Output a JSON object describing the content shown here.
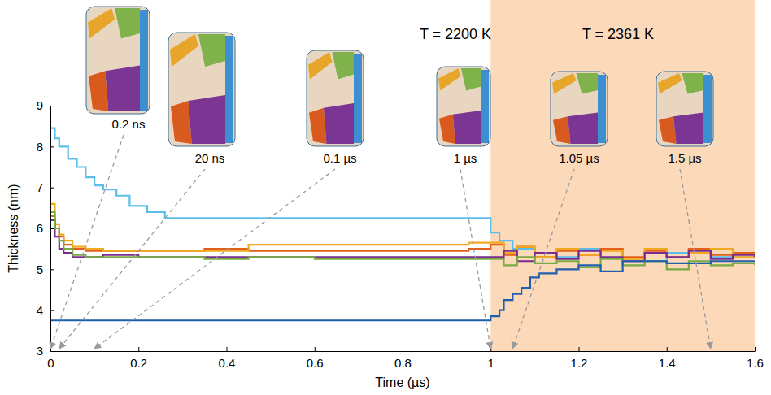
{
  "chart_data": {
    "type": "line",
    "line_style": "step",
    "x_label": "Time (µs)",
    "y_label": "Thickness (nm)",
    "xlim": [
      0,
      1.6
    ],
    "ylim": [
      3,
      9
    ],
    "xticks": [
      0,
      0.2,
      0.4,
      0.6,
      0.8,
      1,
      1.2,
      1.4,
      1.6
    ],
    "yticks": [
      3,
      4,
      5,
      6,
      7,
      8,
      9
    ],
    "grid": false,
    "regions": [
      {
        "x": [
          0,
          1
        ],
        "label": "T = 2200 K"
      },
      {
        "x": [
          1,
          1.6
        ],
        "label": "T = 2361 K",
        "color": "#fcd9b8"
      }
    ],
    "annotations": [
      {
        "text": "0.2 ns",
        "x": 0.0002
      },
      {
        "text": "20 ns",
        "x": 0.02
      },
      {
        "text": "0.1 µs",
        "x": 0.1
      },
      {
        "text": "1 µs",
        "x": 1
      },
      {
        "text": "1.05 µs",
        "x": 1.05
      },
      {
        "text": "1.5 µs",
        "x": 1.5
      }
    ],
    "series": [
      {
        "color": "#5bbde9",
        "x": [
          0,
          0.01,
          0.02,
          0.04,
          0.06,
          0.08,
          0.1,
          0.12,
          0.15,
          0.18,
          0.22,
          0.26,
          0.3,
          0.5,
          0.7,
          0.95,
          1.0,
          1.02,
          1.05,
          1.1,
          1.15,
          1.2,
          1.3,
          1.4,
          1.5,
          1.6
        ],
        "values": [
          8.45,
          8.2,
          8.0,
          7.7,
          7.5,
          7.25,
          7.05,
          6.95,
          6.8,
          6.55,
          6.4,
          6.25,
          6.25,
          6.25,
          6.25,
          6.25,
          5.9,
          5.7,
          5.5,
          5.4,
          5.3,
          5.5,
          5.2,
          5.4,
          5.3,
          5.3
        ]
      },
      {
        "color": "#e2601c",
        "x": [
          0,
          0.01,
          0.02,
          0.03,
          0.05,
          0.08,
          0.12,
          0.2,
          0.35,
          0.45,
          0.6,
          0.8,
          0.95,
          1.0,
          1.03,
          1.06,
          1.1,
          1.15,
          1.2,
          1.25,
          1.3,
          1.35,
          1.4,
          1.45,
          1.5,
          1.55,
          1.6
        ],
        "values": [
          6.3,
          6.0,
          5.8,
          5.6,
          5.5,
          5.45,
          5.45,
          5.45,
          5.5,
          5.45,
          5.45,
          5.45,
          5.5,
          5.6,
          5.35,
          5.55,
          5.3,
          5.45,
          5.35,
          5.5,
          5.3,
          5.45,
          5.3,
          5.5,
          5.35,
          5.4,
          5.35
        ]
      },
      {
        "color": "#f0aa22",
        "x": [
          0,
          0.01,
          0.02,
          0.03,
          0.05,
          0.08,
          0.12,
          0.2,
          0.35,
          0.45,
          0.6,
          0.8,
          0.95,
          1.0,
          1.03,
          1.06,
          1.1,
          1.15,
          1.2,
          1.25,
          1.3,
          1.35,
          1.4,
          1.45,
          1.5,
          1.55,
          1.6
        ],
        "values": [
          6.6,
          6.1,
          5.85,
          5.7,
          5.55,
          5.5,
          5.45,
          5.45,
          5.45,
          5.6,
          5.6,
          5.6,
          5.65,
          5.65,
          5.4,
          5.55,
          5.3,
          5.5,
          5.35,
          5.45,
          5.25,
          5.5,
          5.3,
          5.4,
          5.5,
          5.3,
          5.4
        ]
      },
      {
        "color": "#7b2d8f",
        "x": [
          0,
          0.01,
          0.02,
          0.03,
          0.05,
          0.08,
          0.12,
          0.2,
          0.35,
          0.45,
          0.6,
          0.8,
          0.95,
          1.0,
          1.03,
          1.06,
          1.1,
          1.15,
          1.2,
          1.25,
          1.3,
          1.35,
          1.4,
          1.45,
          1.5,
          1.55,
          1.6
        ],
        "values": [
          6.2,
          5.8,
          5.5,
          5.4,
          5.3,
          5.3,
          5.35,
          5.3,
          5.3,
          5.3,
          5.3,
          5.3,
          5.3,
          5.3,
          5.45,
          5.2,
          5.4,
          5.25,
          5.45,
          5.3,
          5.2,
          5.4,
          5.3,
          5.45,
          5.25,
          5.35,
          5.3
        ]
      },
      {
        "color": "#77ac43",
        "x": [
          0,
          0.01,
          0.02,
          0.03,
          0.05,
          0.08,
          0.12,
          0.2,
          0.35,
          0.45,
          0.6,
          0.8,
          0.95,
          1.0,
          1.03,
          1.06,
          1.1,
          1.15,
          1.2,
          1.25,
          1.3,
          1.35,
          1.4,
          1.45,
          1.5,
          1.55,
          1.6
        ],
        "values": [
          6.4,
          6.0,
          5.7,
          5.5,
          5.35,
          5.3,
          5.3,
          5.3,
          5.25,
          5.3,
          5.25,
          5.25,
          5.25,
          5.25,
          5.1,
          5.3,
          5.15,
          5.2,
          5.05,
          5.25,
          5.1,
          5.2,
          5.0,
          5.2,
          5.1,
          5.15,
          5.1
        ]
      },
      {
        "color": "#1f5fa9",
        "x": [
          0,
          1.0,
          1.02,
          1.03,
          1.05,
          1.07,
          1.09,
          1.11,
          1.15,
          1.2,
          1.25,
          1.3,
          1.4,
          1.5,
          1.6
        ],
        "values": [
          3.75,
          3.85,
          4.0,
          4.25,
          4.4,
          4.55,
          4.8,
          4.9,
          5.0,
          5.1,
          4.95,
          5.2,
          5.15,
          5.2,
          5.2
        ]
      }
    ]
  }
}
